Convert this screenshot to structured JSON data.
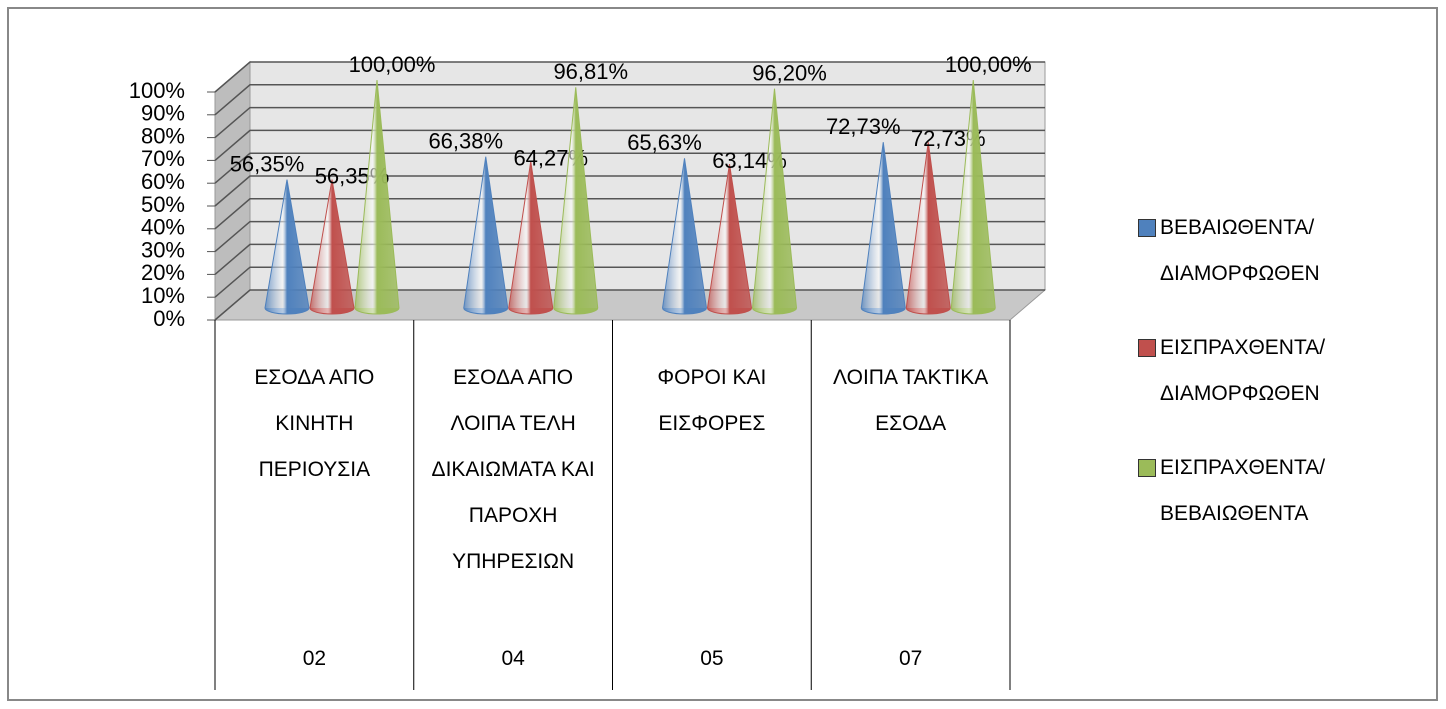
{
  "chart_data": {
    "type": "cone",
    "categories": [
      "ΕΣΟΔΑ ΑΠΟ ΚΙΝΗΤΗ ΠΕΡΙΟΥΣΙΑ",
      "ΕΣΟΔΑ ΑΠΟ ΛΟΙΠΑ ΤΕΛΗ ΔΙΚΑΙΩΜΑΤΑ ΚΑΙ ΠΑΡΟΧΗ ΥΠΗΡΕΣΙΩΝ",
      "ΦΟΡΟΙ ΚΑΙ ΕΙΣΦΟΡΕΣ",
      "ΛΟΙΠΑ ΤΑΚΤΙΚΑ ΕΣΟΔΑ"
    ],
    "category_codes": [
      "02",
      "04",
      "05",
      "07"
    ],
    "series": [
      {
        "name": "ΒΕΒΑΙΩΘΕΝΤΑ/ ΔΙΑΜΟΡΦΩΘΕΝ",
        "color": "#4f81bd",
        "values": [
          56.35,
          66.38,
          65.63,
          72.73
        ],
        "value_labels": [
          "56,35%",
          "66,38%",
          "65,63%",
          "72,73%"
        ]
      },
      {
        "name": "ΕΙΣΠΡΑΧΘΕΝΤΑ/ ΔΙΑΜΟΡΦΩΘΕΝ",
        "color": "#c0504d",
        "values": [
          56.35,
          64.27,
          63.14,
          72.73
        ],
        "value_labels": [
          "56,35%",
          "64,27%",
          "63,14%",
          "72,73%"
        ]
      },
      {
        "name": "ΕΙΣΠΡΑΧΘΕΝΤΑ/ ΒΕΒΑΙΩΘΕΝΤΑ",
        "color": "#9bbb59",
        "values": [
          100,
          96.81,
          96.2,
          100
        ],
        "value_labels": [
          "100,00%",
          "96,81%",
          "96,20%",
          "100,00%"
        ]
      }
    ],
    "ylim": [
      0,
      100
    ],
    "yticks": [
      {
        "value": 0,
        "label": "0%"
      },
      {
        "value": 10,
        "label": "10%"
      },
      {
        "value": 20,
        "label": "20%"
      },
      {
        "value": 30,
        "label": "30%"
      },
      {
        "value": 40,
        "label": "40%"
      },
      {
        "value": 50,
        "label": "50%"
      },
      {
        "value": 60,
        "label": "60%"
      },
      {
        "value": 70,
        "label": "70%"
      },
      {
        "value": 80,
        "label": "80%"
      },
      {
        "value": 90,
        "label": "90%"
      },
      {
        "value": 100,
        "label": "100%"
      }
    ],
    "grid": true,
    "legend": "right"
  }
}
